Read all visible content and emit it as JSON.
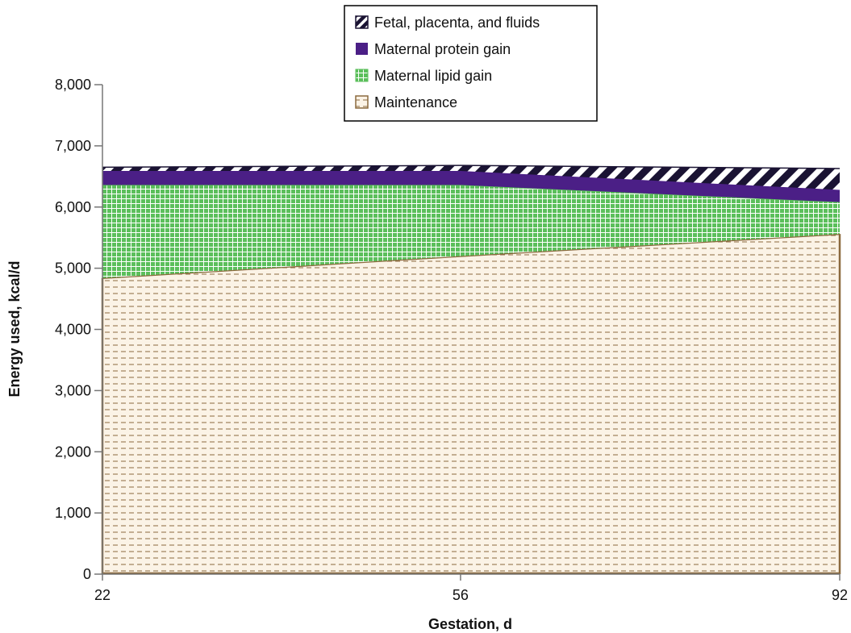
{
  "chart_data": {
    "type": "area",
    "stacked": true,
    "xlabel": "Gestation, d",
    "ylabel": "Energy used, kcal/d",
    "x": [
      22,
      56,
      92
    ],
    "x_ticks": [
      22,
      56,
      92
    ],
    "x_tick_labels": [
      "22",
      "56",
      "92"
    ],
    "ylim": [
      0,
      8000
    ],
    "y_ticks": [
      0,
      1000,
      2000,
      3000,
      4000,
      5000,
      6000,
      7000,
      8000
    ],
    "y_tick_labels": [
      "0",
      "1,000",
      "2,000",
      "3,000",
      "4,000",
      "5,000",
      "6,000",
      "7,000",
      "8,000"
    ],
    "grid": false,
    "legend_position": "top-center",
    "series": [
      {
        "name": "Maintenance",
        "values": [
          4840,
          5200,
          5560
        ],
        "color": "#8B6A3E",
        "fill": "#fbf3e6",
        "pattern": "dashed-horizontal"
      },
      {
        "name": "Maternal lipid gain",
        "values": [
          1520,
          1160,
          520
        ],
        "color": "#5bbf5b",
        "fill": "#5bbf5b",
        "pattern": "grid"
      },
      {
        "name": "Maternal protein gain",
        "values": [
          230,
          230,
          200
        ],
        "color": "#4b1f86",
        "fill": "#4b1f86",
        "pattern": "solid"
      },
      {
        "name": "Fetal, placenta, and fluids",
        "values": [
          60,
          90,
          350
        ],
        "color": "#1a1333",
        "fill": "#1a1333",
        "pattern": "diagonal-stripes"
      }
    ]
  },
  "legend": {
    "items": [
      {
        "label": "Fetal, placenta, and fluids",
        "icon": "diagonal-stripes-swatch"
      },
      {
        "label": "Maternal protein gain",
        "icon": "solid-purple-swatch"
      },
      {
        "label": "Maternal lipid gain",
        "icon": "green-grid-swatch"
      },
      {
        "label": "Maintenance",
        "icon": "brown-dashed-swatch"
      }
    ]
  }
}
